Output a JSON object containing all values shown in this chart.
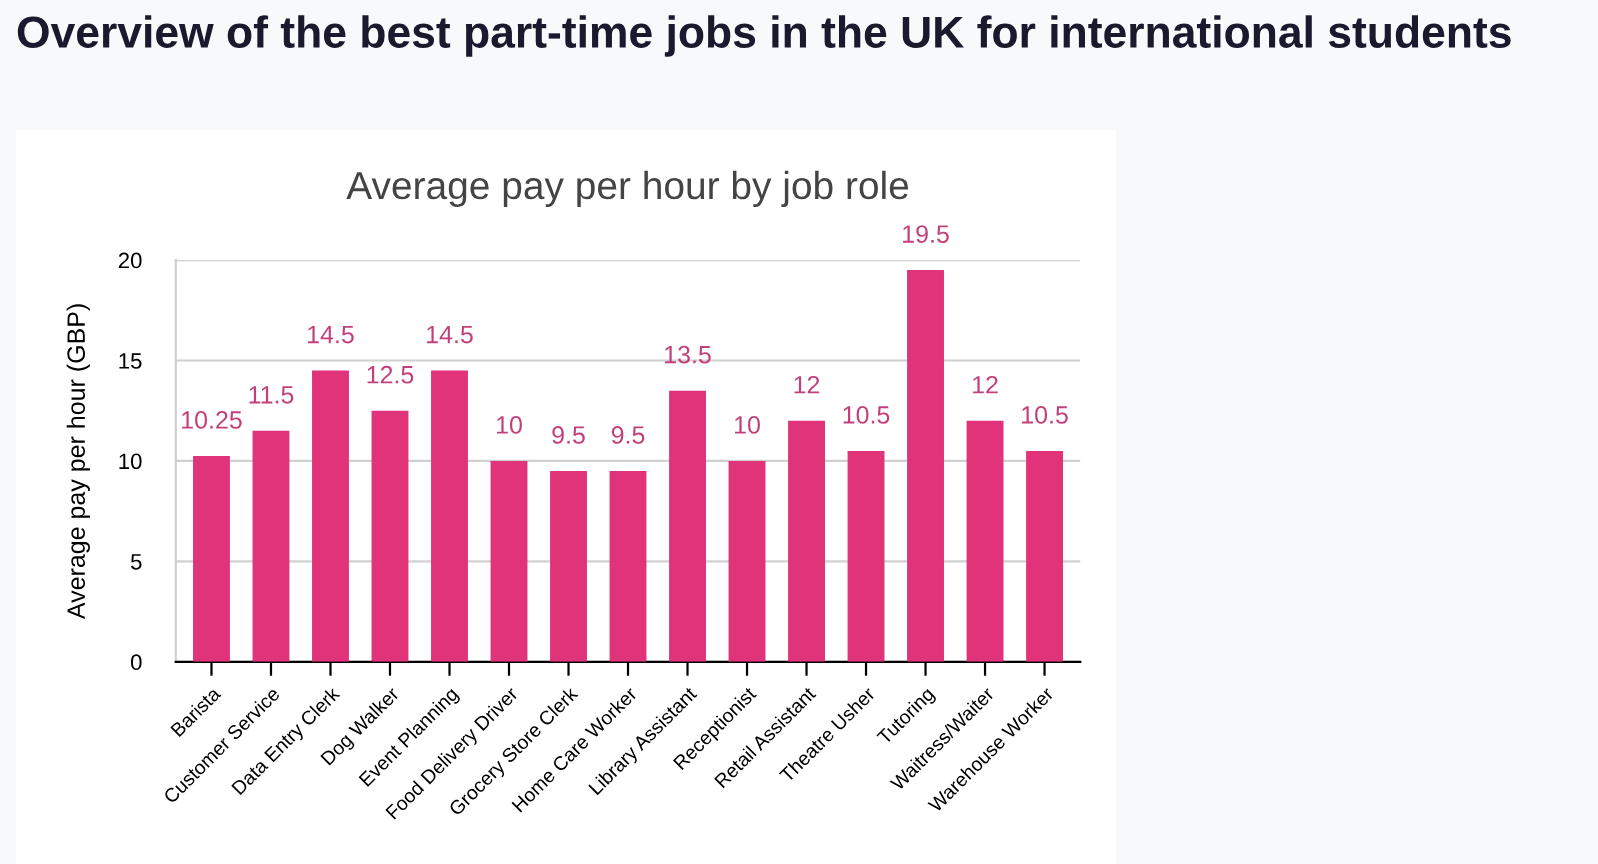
{
  "chart_data": {
    "type": "bar",
    "title": "Average pay per hour by job role",
    "annotations": [
      "Overview of the best part-time jobs in the UK for international students"
    ],
    "ylabel": "Average pay per hour (GBP)",
    "categories": [
      "Barista",
      "Customer Service",
      "Data Entry Clerk",
      "Dog Walker",
      "Event Planning",
      "Food Delivery Driver",
      "Grocery Store Clerk",
      "Home Care Worker",
      "Library Assistant",
      "Receptionist",
      "Retail Assistant",
      "Theatre Usher",
      "Tutoring",
      "Waitress/Waiter",
      "Warehouse Worker"
    ],
    "values": [
      10.25,
      11.5,
      14.5,
      12.5,
      14.5,
      10,
      9.5,
      9.5,
      13.5,
      10,
      12,
      10.5,
      19.5,
      12,
      10.5
    ],
    "color": "#e0337a",
    "data_labels": true,
    "ylim": [
      0,
      20
    ],
    "yticks": [
      0,
      5,
      10,
      15,
      20
    ],
    "grid": "y",
    "legend": false
  }
}
